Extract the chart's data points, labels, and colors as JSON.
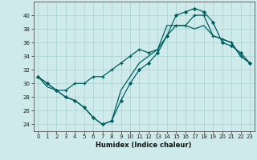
{
  "xlabel": "Humidex (Indice chaleur)",
  "background_color": "#ceeaea",
  "grid_color": "#aacfcf",
  "line_color": "#006060",
  "xlim": [
    -0.5,
    23.5
  ],
  "ylim": [
    23,
    42
  ],
  "yticks": [
    24,
    26,
    28,
    30,
    32,
    34,
    36,
    38,
    40
  ],
  "xticks": [
    0,
    1,
    2,
    3,
    4,
    5,
    6,
    7,
    8,
    9,
    10,
    11,
    12,
    13,
    14,
    15,
    16,
    17,
    18,
    19,
    20,
    21,
    22,
    23
  ],
  "curve1_x": [
    0,
    1,
    2,
    3,
    4,
    5,
    6,
    7,
    8,
    9,
    10,
    11,
    12,
    13,
    14,
    15,
    16,
    17,
    18,
    19,
    20,
    21,
    22,
    23
  ],
  "curve1_y": [
    31,
    30,
    29,
    29,
    30,
    30,
    31,
    31,
    32,
    33,
    34,
    35,
    34.5,
    35,
    37,
    38.5,
    38.5,
    40,
    40,
    37,
    36.5,
    36,
    34,
    33
  ],
  "curve2_x": [
    0,
    1,
    2,
    3,
    4,
    5,
    6,
    7,
    8,
    9,
    10,
    11,
    12,
    13,
    14,
    15,
    16,
    17,
    18,
    19,
    20,
    21,
    22,
    23
  ],
  "curve2_y": [
    31,
    30,
    29,
    28,
    27.5,
    26.5,
    25,
    24,
    24.5,
    27.5,
    30,
    32,
    33,
    34.5,
    37,
    40,
    40.5,
    41,
    40.5,
    39,
    36,
    35.5,
    34.5,
    33
  ],
  "curve3_x": [
    0,
    1,
    2,
    3,
    4,
    5,
    6,
    7,
    8,
    9,
    10,
    11,
    12,
    13,
    14,
    15,
    16,
    17,
    18,
    19,
    20,
    21,
    22,
    23
  ],
  "curve3_y": [
    31,
    29.5,
    29,
    28,
    27.5,
    26.5,
    25,
    24,
    24.5,
    29,
    31,
    33,
    34,
    35,
    38.5,
    38.5,
    38.5,
    38,
    38.5,
    37,
    36.5,
    36,
    34,
    33
  ]
}
